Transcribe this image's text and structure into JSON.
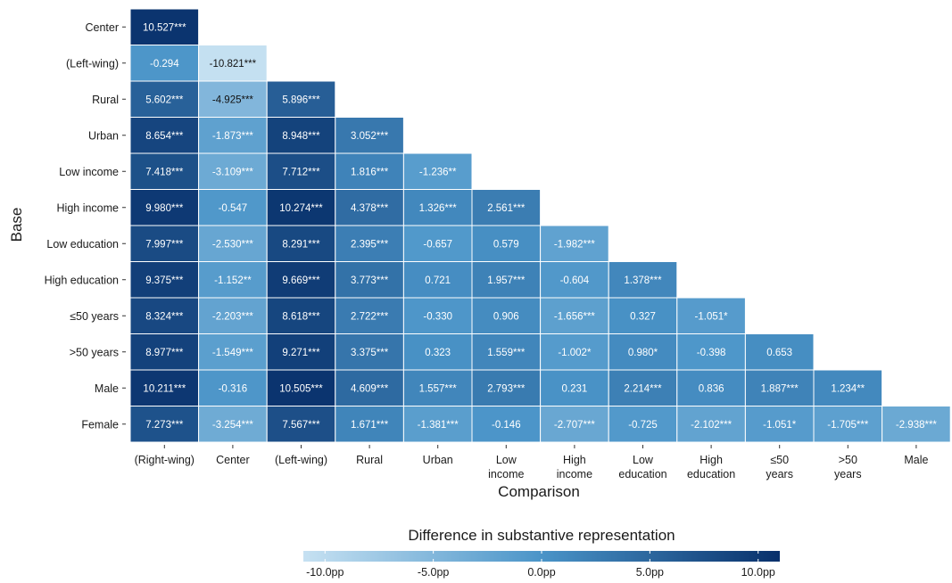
{
  "chart_data": {
    "type": "heatmap",
    "xlabel": "Comparison",
    "ylabel": "Base",
    "x_categories": [
      "(Right-wing)",
      "Center",
      "(Left-wing)",
      "Rural",
      "Urban",
      "Low\nincome",
      "High\nincome",
      "Low\neducation",
      "High\neducation",
      "≤50\nyears",
      ">50\nyears",
      "Male"
    ],
    "y_categories": [
      "Center",
      "(Left-wing)",
      "Rural",
      "Urban",
      "Low income",
      "High income",
      "Low education",
      "High education",
      "≤50 years",
      ">50 years",
      "Male",
      "Female"
    ],
    "values": [
      [
        10.527
      ],
      [
        -0.294,
        -10.821
      ],
      [
        5.602,
        -4.925,
        5.896
      ],
      [
        8.654,
        -1.873,
        8.948,
        3.052
      ],
      [
        7.418,
        -3.109,
        7.712,
        1.816,
        -1.236
      ],
      [
        9.98,
        -0.547,
        10.274,
        4.378,
        1.326,
        2.561
      ],
      [
        7.997,
        -2.53,
        8.291,
        2.395,
        -0.657,
        0.579,
        -1.982
      ],
      [
        9.375,
        -1.152,
        9.669,
        3.773,
        0.721,
        1.957,
        -0.604,
        1.378
      ],
      [
        8.324,
        -2.203,
        8.618,
        2.722,
        -0.33,
        0.906,
        -1.656,
        0.327,
        -1.051
      ],
      [
        8.977,
        -1.549,
        9.271,
        3.375,
        0.323,
        1.559,
        -1.002,
        0.98,
        -0.398,
        0.653
      ],
      [
        10.211,
        -0.316,
        10.505,
        4.609,
        1.557,
        2.793,
        0.231,
        2.214,
        0.836,
        1.887,
        1.234
      ],
      [
        7.273,
        -3.254,
        7.567,
        1.671,
        -1.381,
        -0.146,
        -2.707,
        -0.725,
        -2.102,
        -1.051,
        -1.705,
        -2.938
      ]
    ],
    "labels": [
      [
        "10.527***"
      ],
      [
        "-0.294",
        "-10.821***"
      ],
      [
        "5.602***",
        "-4.925***",
        "5.896***"
      ],
      [
        "8.654***",
        "-1.873***",
        "8.948***",
        "3.052***"
      ],
      [
        "7.418***",
        "-3.109***",
        "7.712***",
        "1.816***",
        "-1.236**"
      ],
      [
        "9.980***",
        "-0.547",
        "10.274***",
        "4.378***",
        "1.326***",
        "2.561***"
      ],
      [
        "7.997***",
        "-2.530***",
        "8.291***",
        "2.395***",
        "-0.657",
        "0.579",
        "-1.982***"
      ],
      [
        "9.375***",
        "-1.152**",
        "9.669***",
        "3.773***",
        "0.721",
        "1.957***",
        "-0.604",
        "1.378***"
      ],
      [
        "8.324***",
        "-2.203***",
        "8.618***",
        "2.722***",
        "-0.330",
        "0.906",
        "-1.656***",
        "0.327",
        "-1.051*"
      ],
      [
        "8.977***",
        "-1.549***",
        "9.271***",
        "3.375***",
        "0.323",
        "1.559***",
        "-1.002*",
        "0.980*",
        "-0.398",
        "0.653"
      ],
      [
        "10.211***",
        "-0.316",
        "10.505***",
        "4.609***",
        "1.557***",
        "2.793***",
        "0.231",
        "2.214***",
        "0.836",
        "1.887***",
        "1.234**"
      ],
      [
        "7.273***",
        "-3.254***",
        "7.567***",
        "1.671***",
        "-1.381***",
        "-0.146",
        "-2.707***",
        "-0.725",
        "-2.102***",
        "-1.051*",
        "-1.705***",
        "-2.938***"
      ]
    ],
    "legend": {
      "title": "Difference in substantive representation",
      "position": "bottom",
      "range": [
        -11,
        11
      ],
      "ticks": [
        -10,
        -5,
        0,
        5,
        10
      ],
      "tick_labels": [
        "-10.0pp",
        "-5.0pp",
        "0.0pp",
        "5.0pp",
        "10.0pp"
      ],
      "colors": {
        "low": "#c6e1f2",
        "mid": "#4a94c8",
        "high": "#08306b"
      }
    },
    "grid": false
  }
}
